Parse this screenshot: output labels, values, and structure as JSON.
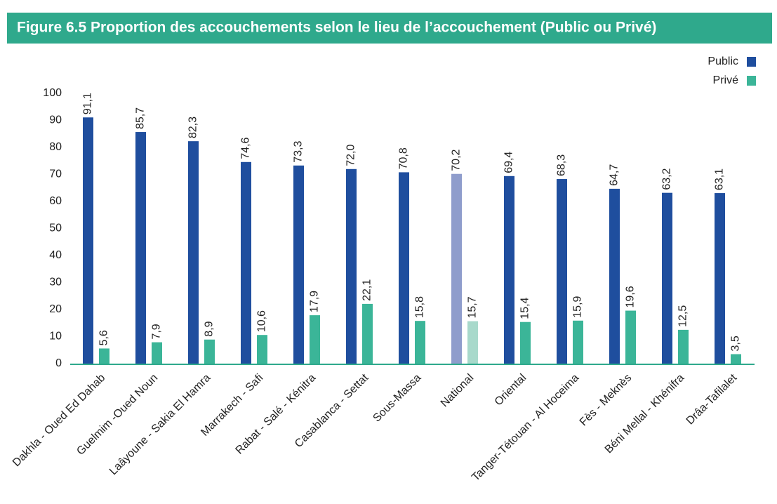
{
  "chart_data": {
    "type": "bar",
    "title": "Figure 6.5 Proportion des accouchements selon le lieu de l’accouchement (Public ou Privé)",
    "categories": [
      "Dakhla - Oued Ed Dahab",
      "Guelmim -Oued Noun",
      "Laâyoune - Sakia El Hamra",
      "Marrakech - Safi",
      "Rabat - Salé - Kénitra",
      "Casablanca - Settat",
      "Sous-Massa",
      "National",
      "Oriental",
      "Tanger-Tétouan - Al Hoceima",
      "Fès - Meknès",
      "Béni Mellal - Khénifra",
      "Drâa-Tafilalet"
    ],
    "series": [
      {
        "name": "Public",
        "color": "#1f4e9e",
        "colors": [
          "#1f4e9e",
          "#1f4e9e",
          "#1f4e9e",
          "#1f4e9e",
          "#1f4e9e",
          "#1f4e9e",
          "#1f4e9e",
          "#8f9dcc",
          "#1f4e9e",
          "#1f4e9e",
          "#1f4e9e",
          "#1f4e9e",
          "#1f4e9e"
        ],
        "values": [
          91.1,
          85.7,
          82.3,
          74.6,
          73.3,
          72.0,
          70.8,
          70.2,
          69.4,
          68.3,
          64.7,
          63.2,
          63.1
        ],
        "value_labels": [
          "91,1",
          "85,7",
          "82,3",
          "74,6",
          "73,3",
          "72,0",
          "70,8",
          "70,2",
          "69,4",
          "68,3",
          "64,7",
          "63,2",
          "63,1"
        ]
      },
      {
        "name": "Privé",
        "color": "#3bb598",
        "colors": [
          "#3bb598",
          "#3bb598",
          "#3bb598",
          "#3bb598",
          "#3bb598",
          "#3bb598",
          "#3bb598",
          "#a8d9cb",
          "#3bb598",
          "#3bb598",
          "#3bb598",
          "#3bb598",
          "#3bb598"
        ],
        "values": [
          5.6,
          7.9,
          8.9,
          10.6,
          17.9,
          22.1,
          15.8,
          15.7,
          15.4,
          15.9,
          19.6,
          12.5,
          3.5
        ],
        "value_labels": [
          "5,6",
          "7,9",
          "8,9",
          "10,6",
          "17,9",
          "22,1",
          "15,8",
          "15,7",
          "15,4",
          "15,9",
          "19,6",
          "12,5",
          "3,5"
        ]
      }
    ],
    "ylim": [
      0,
      100
    ],
    "yticks": [
      0,
      10,
      20,
      30,
      40,
      50,
      60,
      70,
      80,
      90,
      100
    ],
    "grid": false,
    "legend": "upper right"
  }
}
